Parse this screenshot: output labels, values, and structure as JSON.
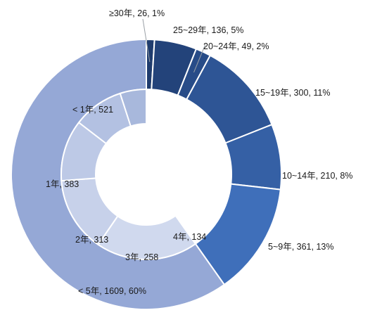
{
  "chart_data": [
    {
      "type": "pie",
      "subtype": "donut-outer-ring",
      "categories": [
        "≥30年",
        "25~29年",
        "20~24年",
        "15~19年",
        "10~14年",
        "5~9年",
        "< 5年"
      ],
      "values": [
        26,
        136,
        49,
        300,
        210,
        361,
        1609
      ],
      "percents": [
        1,
        5,
        2,
        11,
        8,
        13,
        60
      ],
      "labels": [
        "≥30年, 26, 1%",
        "25~29年, 136, 5%",
        "20~24年, 49, 2%",
        "15~19年, 300, 11%",
        "10~14年, 210, 8%",
        "5~9年, 361, 13%",
        "< 5年, 1609, 60%"
      ],
      "colors": [
        "#1f3c6e",
        "#23437a",
        "#284c88",
        "#2e5595",
        "#3560a5",
        "#3f6fba",
        "#95a8d6"
      ]
    },
    {
      "type": "pie",
      "subtype": "donut-inner-ring",
      "categories": [
        "< 1年",
        "1年",
        "2年",
        "3年",
        "4年"
      ],
      "values": [
        521,
        383,
        313,
        258,
        134
      ],
      "labels": [
        "< 1年, 521",
        "1年, 383",
        "2年, 313",
        "3年, 258",
        "4年, 134"
      ],
      "colors": [
        "#d0d9ee",
        "#c7d1ea",
        "#bdc9e6",
        "#b3c1e2",
        "#a8b8dc"
      ]
    }
  ]
}
